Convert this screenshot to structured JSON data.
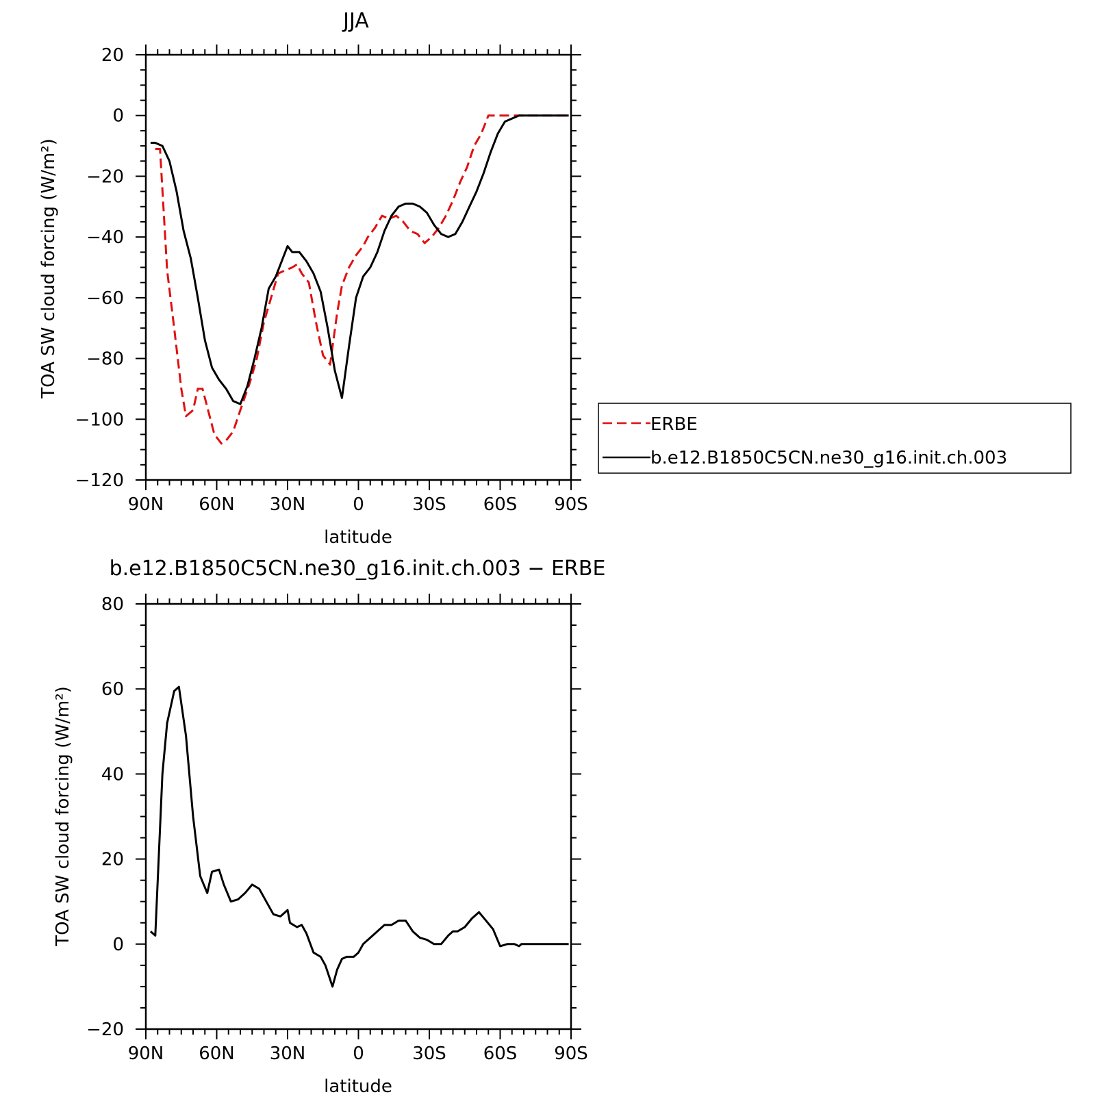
{
  "chart_data": [
    {
      "type": "line",
      "title": "JJA",
      "xlabel": "latitude",
      "ylabel": "TOA SW cloud forcing (W/m²)",
      "xlim": [
        90,
        -90
      ],
      "ylim": [
        -120,
        20
      ],
      "x_ticks": [
        90,
        60,
        30,
        0,
        -30,
        -60,
        -90
      ],
      "x_tick_labels": [
        "90N",
        "60N",
        "30N",
        "0",
        "30S",
        "60S",
        "90S"
      ],
      "y_ticks": [
        20,
        0,
        -20,
        -40,
        -60,
        -80,
        -100,
        -120
      ],
      "y_tick_labels": [
        "20",
        "0",
        "−20",
        "−40",
        "−60",
        "−80",
        "−100",
        "−120"
      ],
      "legend": "right",
      "series": [
        {
          "name": "ERBE",
          "color": "#e01010",
          "dash": "dashed",
          "x": [
            86,
            84,
            81,
            78,
            75,
            73,
            70,
            68,
            66,
            64,
            61,
            58,
            56,
            53,
            50,
            46,
            43,
            40,
            37,
            34,
            31,
            28,
            26,
            24,
            21,
            18,
            15,
            12,
            9,
            7,
            4,
            1,
            -2,
            -4,
            -7,
            -10,
            -13,
            -16,
            -19,
            -22,
            -25,
            -28,
            -31,
            -34,
            -37,
            -40,
            -43,
            -46,
            -49,
            -52,
            -55,
            -58,
            -61,
            -64,
            -67,
            -70,
            -73,
            -76,
            -79,
            -82,
            -85,
            -88
          ],
          "y": [
            -11,
            -11,
            -51,
            -70,
            -90,
            -99,
            -97,
            -90,
            -90,
            -96,
            -105,
            -108,
            -107,
            -104,
            -97,
            -88,
            -80,
            -68,
            -60,
            -52,
            -51,
            -50,
            -49,
            -52,
            -55,
            -68,
            -79,
            -82,
            -65,
            -56,
            -50,
            -46,
            -43,
            -40,
            -37,
            -33,
            -34,
            -33,
            -35,
            -38,
            -39,
            -42,
            -40,
            -37,
            -33,
            -28,
            -22,
            -17,
            -10,
            -6,
            0,
            0,
            0,
            0,
            0,
            0,
            0,
            0,
            0,
            0,
            0,
            0
          ]
        },
        {
          "name": "b.e12.B1850C5CN.ne30_g16.init.ch.003",
          "color": "#000000",
          "dash": "solid",
          "x": [
            88,
            86,
            83,
            80,
            77,
            74,
            71,
            68,
            65,
            62,
            59,
            56,
            53,
            50,
            47,
            44,
            41,
            38,
            35,
            32,
            30,
            28,
            25,
            22,
            19,
            16,
            13,
            10,
            7,
            4,
            1,
            -2,
            -5,
            -8,
            -11,
            -14,
            -17,
            -20,
            -23,
            -26,
            -29,
            -32,
            -35,
            -38,
            -41,
            -44,
            -47,
            -50,
            -53,
            -56,
            -59,
            -62,
            -65,
            -68,
            -71,
            -74,
            -77,
            -80,
            -83,
            -86,
            -89
          ],
          "y": [
            -9,
            -9,
            -10,
            -15,
            -25,
            -38,
            -47,
            -60,
            -74,
            -83,
            -87,
            -90,
            -94,
            -95,
            -89,
            -80,
            -70,
            -57,
            -53,
            -47,
            -43,
            -45,
            -45,
            -48,
            -52,
            -58,
            -70,
            -84,
            -93,
            -76,
            -60,
            -53,
            -50,
            -45,
            -38,
            -33,
            -30,
            -29,
            -29,
            -30,
            -32,
            -36,
            -39,
            -40,
            -39,
            -35,
            -30,
            -25,
            -19,
            -12,
            -6,
            -2,
            -1,
            0,
            0,
            0,
            0,
            0,
            0,
            0,
            0
          ]
        }
      ]
    },
    {
      "type": "line",
      "title": "b.e12.B1850C5CN.ne30_g16.init.ch.003 − ERBE",
      "xlabel": "latitude",
      "ylabel": "TOA SW cloud forcing (W/m²)",
      "xlim": [
        90,
        -90
      ],
      "ylim": [
        -20,
        80
      ],
      "x_ticks": [
        90,
        60,
        30,
        0,
        -30,
        -60,
        -90
      ],
      "x_tick_labels": [
        "90N",
        "60N",
        "30N",
        "0",
        "30S",
        "60S",
        "90S"
      ],
      "y_ticks": [
        80,
        60,
        40,
        20,
        0,
        -20
      ],
      "y_tick_labels": [
        "80",
        "60",
        "40",
        "20",
        "0",
        "−20"
      ],
      "series": [
        {
          "color": "#000000",
          "dash": "solid",
          "x": [
            88,
            86,
            83,
            81,
            78,
            76,
            73,
            70,
            67,
            64,
            62,
            59,
            57,
            54,
            51,
            48,
            45,
            42,
            39,
            36,
            33,
            30,
            29,
            26,
            24,
            22,
            19,
            16,
            14,
            11,
            9,
            7,
            5,
            2,
            0,
            -2,
            -5,
            -8,
            -11,
            -14,
            -17,
            -20,
            -23,
            -26,
            -29,
            -32,
            -35,
            -38,
            -40,
            -42,
            -45,
            -48,
            -51,
            -54,
            -57,
            -60,
            -63,
            -66,
            -68,
            -69,
            -72,
            -75,
            -78,
            -81,
            -84,
            -87,
            -89
          ],
          "y": [
            3,
            2,
            40,
            52,
            59.5,
            60.5,
            49,
            30,
            16,
            12,
            17,
            17.5,
            14,
            10,
            10.5,
            12,
            14,
            13,
            10,
            7,
            6.5,
            8,
            5,
            4,
            4.5,
            2.5,
            -2,
            -3,
            -5,
            -10,
            -6,
            -3.5,
            -3,
            -3,
            -2,
            0,
            1.5,
            3,
            4.5,
            4.5,
            5.5,
            5.5,
            3,
            1.5,
            1,
            0,
            0,
            2,
            3,
            3,
            4,
            6,
            7.5,
            5.5,
            3.5,
            -0.5,
            0,
            0,
            -0.5,
            0,
            0,
            0,
            0,
            0,
            0,
            0,
            0
          ]
        }
      ]
    }
  ]
}
